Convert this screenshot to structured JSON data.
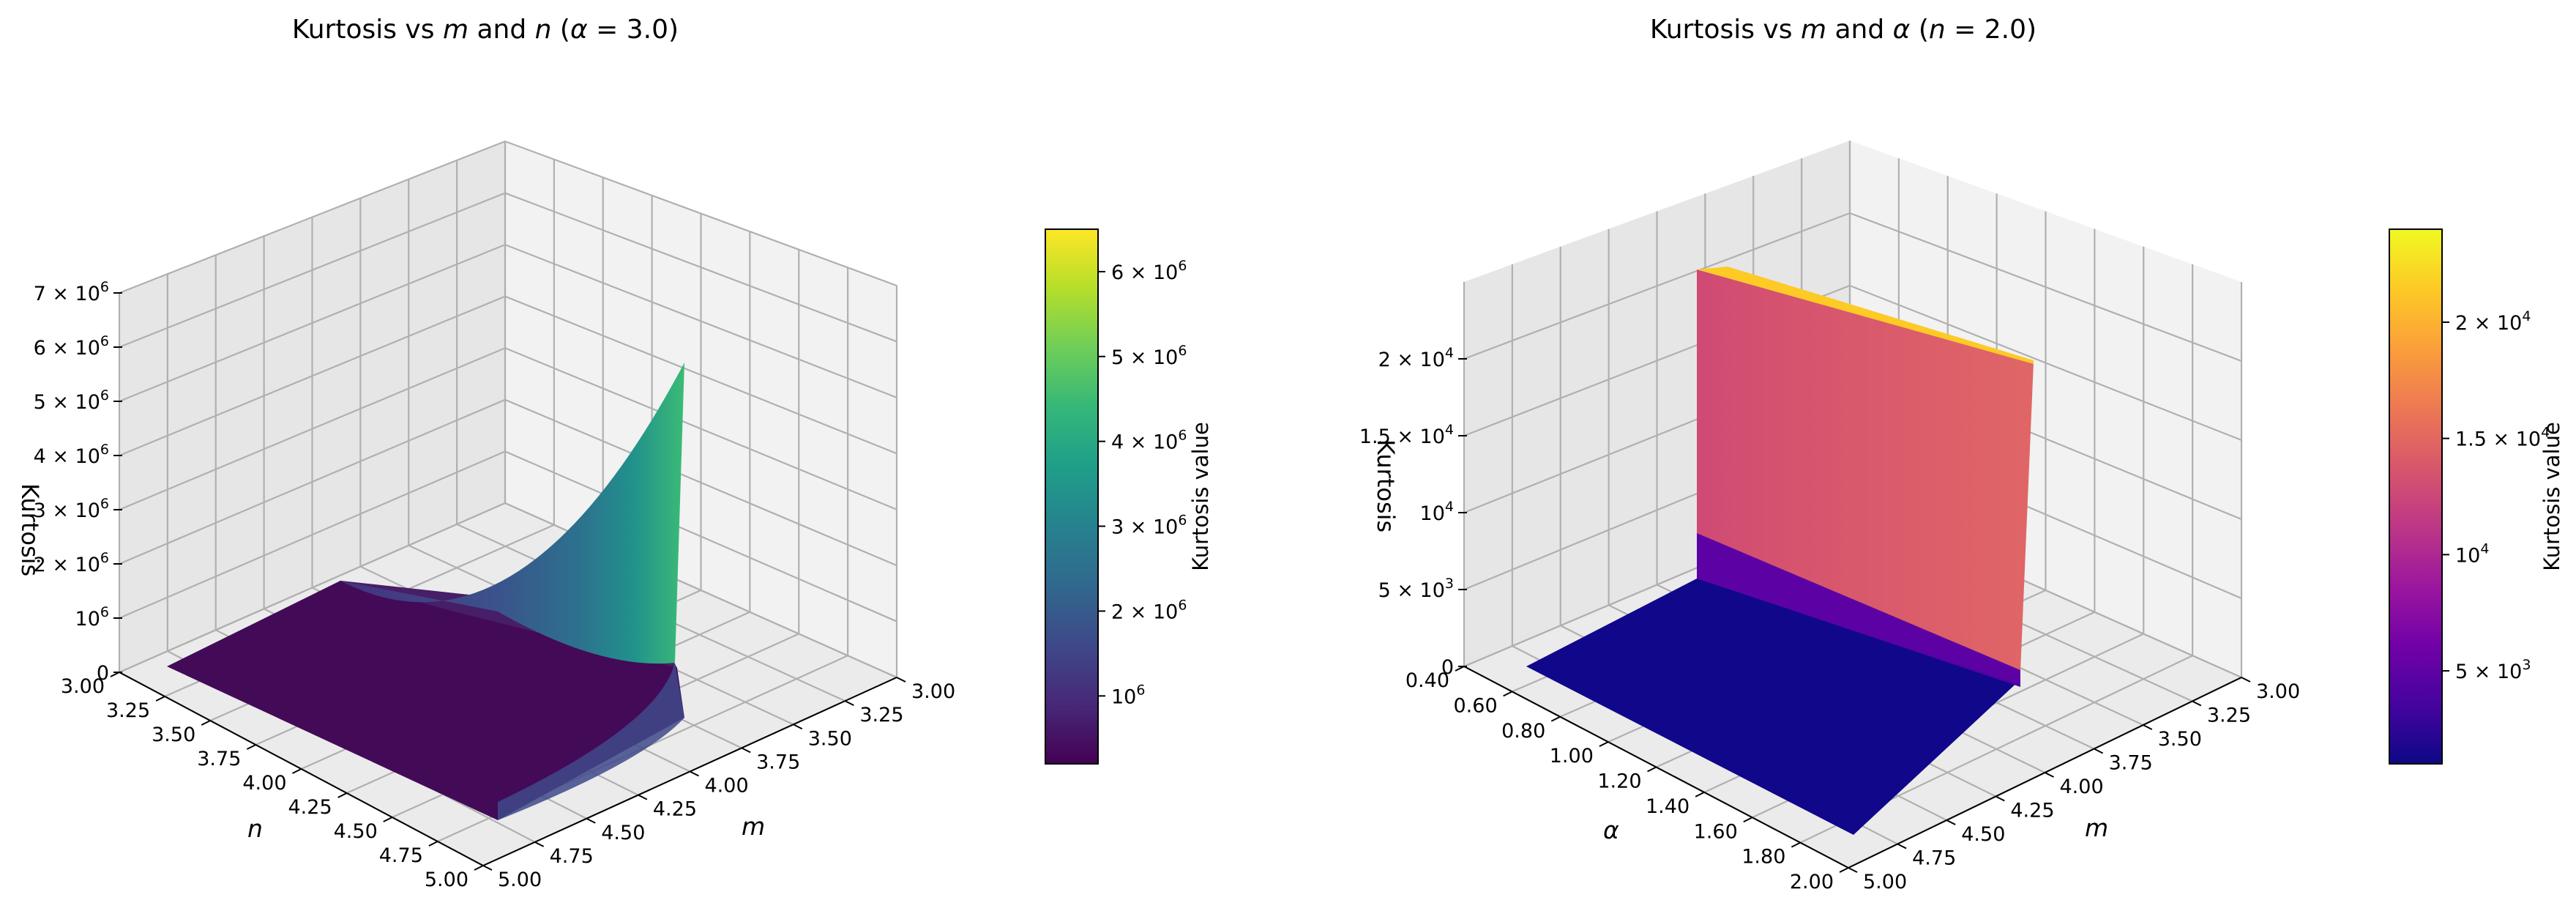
{
  "figure": {
    "background": "#ffffff",
    "pane_colors": {
      "back_left": "#e6e6e6",
      "back_right": "#f2f2f2",
      "floor": "#ebebeb",
      "grid": "#b0b0b0"
    }
  },
  "chart_data": [
    {
      "type": "surface",
      "title": "Kurtosis vs m and n (α = 3.0)",
      "title_parts": [
        "Kurtosis vs ",
        "m",
        " and ",
        "n",
        " (",
        "α",
        " = 3.0)"
      ],
      "xlabel": "m",
      "ylabel": "n",
      "zlabel": "Kurtosis",
      "fixed_parameter": "α = 3.0",
      "x_range": [
        3.0,
        5.0
      ],
      "y_range": [
        3.0,
        5.0
      ],
      "z_range": [
        0,
        7000000
      ],
      "x_ticks": [
        "3.00",
        "3.25",
        "3.50",
        "3.75",
        "4.00",
        "4.25",
        "4.50",
        "4.75",
        "5.00"
      ],
      "y_ticks": [
        "3.00",
        "3.25",
        "3.50",
        "3.75",
        "4.00",
        "4.25",
        "4.50",
        "4.75",
        "5.00"
      ],
      "z_ticks": [
        {
          "value": 0,
          "label": "0",
          "base": "",
          "exp": ""
        },
        {
          "value": 1000000,
          "label": "",
          "base": "10",
          "exp": "6"
        },
        {
          "value": 2000000,
          "label": "2 × ",
          "base": "10",
          "exp": "6"
        },
        {
          "value": 3000000,
          "label": "3 × ",
          "base": "10",
          "exp": "6"
        },
        {
          "value": 4000000,
          "label": "4 × ",
          "base": "10",
          "exp": "6"
        },
        {
          "value": 5000000,
          "label": "5 × ",
          "base": "10",
          "exp": "6"
        },
        {
          "value": 6000000,
          "label": "6 × ",
          "base": "10",
          "exp": "6"
        },
        {
          "value": 7000000,
          "label": "7 × ",
          "base": "10",
          "exp": "6"
        }
      ],
      "colormap": "viridis",
      "colormap_stops": [
        "#440154",
        "#482878",
        "#3e4989",
        "#31688e",
        "#26828e",
        "#1f9e89",
        "#35b779",
        "#6ece58",
        "#b5de2b",
        "#fde725"
      ],
      "colorbar": {
        "label": "Kurtosis value",
        "range": [
          200000,
          6500000
        ],
        "ticks": [
          {
            "value": 1000000,
            "label": "",
            "base": "10",
            "exp": "6"
          },
          {
            "value": 2000000,
            "label": "2 × ",
            "base": "10",
            "exp": "6"
          },
          {
            "value": 3000000,
            "label": "3 × ",
            "base": "10",
            "exp": "6"
          },
          {
            "value": 4000000,
            "label": "4 × ",
            "base": "10",
            "exp": "6"
          },
          {
            "value": 5000000,
            "label": "5 × ",
            "base": "10",
            "exp": "6"
          },
          {
            "value": 6000000,
            "label": "6 × ",
            "base": "10",
            "exp": "6"
          }
        ]
      },
      "surface": {
        "description": "z ≈ 200000 over most of the domain, rising steeply as m → 3 (n = 3)",
        "samples": [
          {
            "m": 3.0,
            "n": 3.0,
            "z": 6000000
          },
          {
            "m": 3.25,
            "n": 3.0,
            "z": 3000000
          },
          {
            "m": 3.5,
            "n": 3.0,
            "z": 1500000
          },
          {
            "m": 4.0,
            "n": 3.0,
            "z": 500000
          },
          {
            "m": 5.0,
            "n": 3.0,
            "z": 300000
          },
          {
            "m": 3.0,
            "n": 5.0,
            "z": 600000
          },
          {
            "m": 5.0,
            "n": 5.0,
            "z": 150000
          }
        ]
      }
    },
    {
      "type": "surface",
      "title": "Kurtosis vs m and α (n = 2.0)",
      "title_parts": [
        "Kurtosis vs ",
        "m",
        " and ",
        "α",
        " (",
        "n",
        " = 2.0)"
      ],
      "xlabel": "m",
      "ylabel": "α",
      "zlabel": "Kurtosis",
      "fixed_parameter": "n = 2.0",
      "x_range": [
        3.0,
        5.0
      ],
      "y_range": [
        0.4,
        2.0
      ],
      "z_range": [
        0,
        25000
      ],
      "x_ticks": [
        "3.00",
        "3.25",
        "3.50",
        "3.75",
        "4.00",
        "4.25",
        "4.50",
        "4.75",
        "5.00"
      ],
      "y_ticks": [
        "0.40",
        "0.60",
        "0.80",
        "1.00",
        "1.20",
        "1.40",
        "1.60",
        "1.80",
        "2.00"
      ],
      "z_ticks": [
        {
          "value": 0,
          "label": "0",
          "base": "",
          "exp": ""
        },
        {
          "value": 5000,
          "label": "5 × ",
          "base": "10",
          "exp": "3"
        },
        {
          "value": 10000,
          "label": "",
          "base": "10",
          "exp": "4"
        },
        {
          "value": 15000,
          "label": "1.5 × ",
          "base": "10",
          "exp": "4"
        },
        {
          "value": 20000,
          "label": "2 × ",
          "base": "10",
          "exp": "4"
        }
      ],
      "colormap": "plasma",
      "colormap_stops": [
        "#0d0887",
        "#46039f",
        "#7201a8",
        "#9c179e",
        "#bd3786",
        "#d8576b",
        "#ed7953",
        "#fb9f3a",
        "#fdca26",
        "#f0f921"
      ],
      "colorbar": {
        "label": "Kurtosis value",
        "range": [
          1000,
          24000
        ],
        "ticks": [
          {
            "value": 5000,
            "label": "5 × ",
            "base": "10",
            "exp": "3"
          },
          {
            "value": 10000,
            "label": "",
            "base": "10",
            "exp": "4"
          },
          {
            "value": 15000,
            "label": "1.5 × ",
            "base": "10",
            "exp": "4"
          },
          {
            "value": 20000,
            "label": "2 × ",
            "base": "10",
            "exp": "4"
          }
        ]
      },
      "surface": {
        "description": "z ≈ 1000 for most of the domain, jumping to ≈ 23000 as α → 0.4 (wall along α = 0.4 for all m)",
        "samples": [
          {
            "m": 3.0,
            "alpha": 0.4,
            "z": 23000
          },
          {
            "m": 5.0,
            "alpha": 0.4,
            "z": 16000
          },
          {
            "m": 3.0,
            "alpha": 0.6,
            "z": 3000
          },
          {
            "m": 3.0,
            "alpha": 1.0,
            "z": 1500
          },
          {
            "m": 5.0,
            "alpha": 2.0,
            "z": 1000
          }
        ]
      }
    }
  ]
}
